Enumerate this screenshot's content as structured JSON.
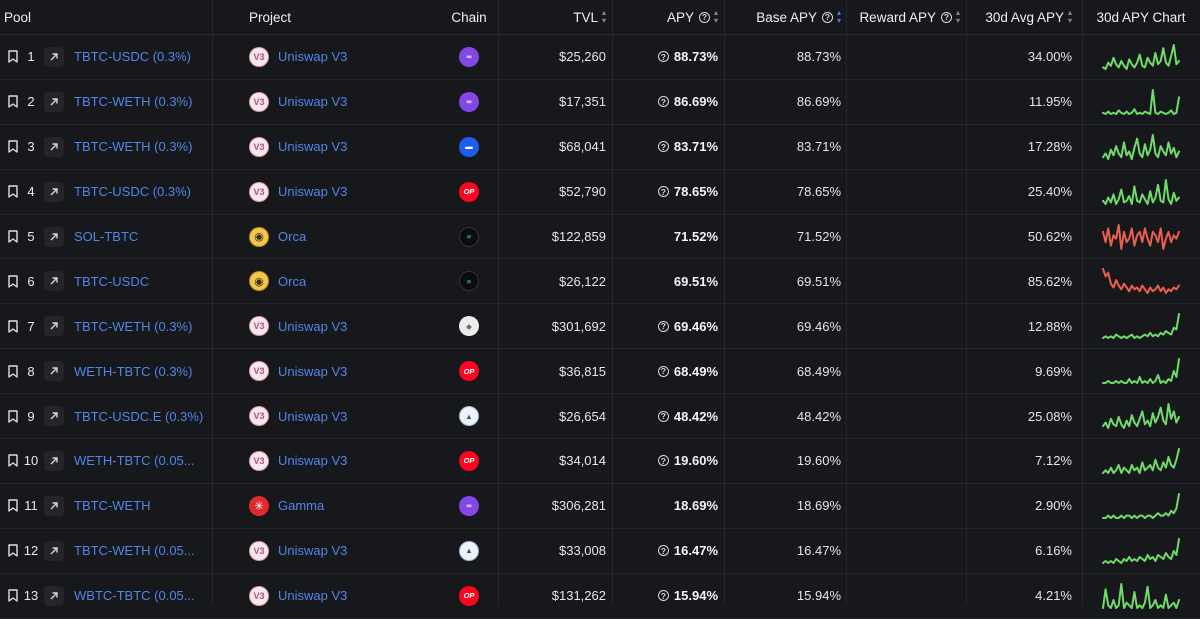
{
  "header": {
    "pool": "Pool",
    "project": "Project",
    "chain": "Chain",
    "tvl": "TVL",
    "apy": "APY",
    "base_apy": "Base APY",
    "reward_apy": "Reward APY",
    "avg_apy": "30d Avg APY",
    "chart": "30d APY Chart"
  },
  "colors": {
    "link": "#4f86e8",
    "spark_up": "#6fdc6a",
    "spark_down": "#ea5f4d"
  },
  "rows": [
    {
      "rank": "1",
      "pool": "TBTC-USDC (0.3%)",
      "project": "Uniswap V3",
      "project_icon": "uniswap-v3-icon",
      "chain": "polygon-icon",
      "tvl": "$25,260",
      "apy": "88.73%",
      "apy_help": true,
      "base": "88.73%",
      "reward": "",
      "avg": "34.00%",
      "trend": "green",
      "spark": [
        6,
        5,
        9,
        7,
        12,
        8,
        6,
        10,
        7,
        5,
        11,
        8,
        6,
        9,
        14,
        7,
        6,
        12,
        9,
        7,
        15,
        8,
        10,
        18,
        9,
        7,
        13,
        20,
        8,
        10
      ]
    },
    {
      "rank": "2",
      "pool": "TBTC-WETH (0.3%)",
      "project": "Uniswap V3",
      "project_icon": "uniswap-v3-icon",
      "chain": "polygon-icon",
      "tvl": "$17,351",
      "apy": "86.69%",
      "apy_help": true,
      "base": "86.69%",
      "reward": "",
      "avg": "11.95%",
      "trend": "green",
      "spark": [
        3,
        2,
        4,
        2,
        3,
        2,
        5,
        3,
        2,
        4,
        2,
        3,
        6,
        2,
        3,
        2,
        4,
        3,
        2,
        22,
        3,
        2,
        4,
        3,
        2,
        3,
        5,
        2,
        3,
        16
      ]
    },
    {
      "rank": "3",
      "pool": "TBTC-WETH (0.3%)",
      "project": "Uniswap V3",
      "project_icon": "uniswap-v3-icon",
      "chain": "base-icon",
      "tvl": "$68,041",
      "apy": "83.71%",
      "apy_help": true,
      "base": "83.71%",
      "reward": "",
      "avg": "17.28%",
      "trend": "green",
      "spark": [
        4,
        6,
        3,
        8,
        5,
        10,
        6,
        4,
        12,
        5,
        7,
        3,
        9,
        14,
        6,
        4,
        11,
        5,
        8,
        16,
        6,
        4,
        10,
        7,
        5,
        12,
        6,
        9,
        4,
        7
      ]
    },
    {
      "rank": "4",
      "pool": "TBTC-USDC (0.3%)",
      "project": "Uniswap V3",
      "project_icon": "uniswap-v3-icon",
      "chain": "optimism-icon",
      "tvl": "$52,790",
      "apy": "78.65%",
      "apy_help": true,
      "base": "78.65%",
      "reward": "",
      "avg": "25.40%",
      "trend": "green",
      "spark": [
        5,
        3,
        7,
        4,
        9,
        3,
        6,
        12,
        4,
        5,
        8,
        3,
        14,
        5,
        4,
        9,
        6,
        3,
        11,
        4,
        7,
        15,
        5,
        4,
        18,
        6,
        3,
        10,
        5,
        7
      ]
    },
    {
      "rank": "5",
      "pool": "SOL-TBTC",
      "project": "Orca",
      "project_icon": "orca-icon",
      "chain": "solana-icon",
      "tvl": "$122,859",
      "apy": "71.52%",
      "apy_help": false,
      "base": "71.52%",
      "reward": "",
      "avg": "50.62%",
      "trend": "red",
      "spark": [
        12,
        9,
        13,
        8,
        11,
        10,
        14,
        7,
        12,
        9,
        10,
        13,
        8,
        11,
        12,
        9,
        13,
        10,
        8,
        12,
        11,
        9,
        13,
        7,
        10,
        12,
        9,
        11,
        10,
        12
      ]
    },
    {
      "rank": "6",
      "pool": "TBTC-USDC",
      "project": "Orca",
      "project_icon": "orca-icon",
      "chain": "solana-icon",
      "tvl": "$26,122",
      "apy": "69.51%",
      "apy_help": false,
      "base": "69.51%",
      "reward": "",
      "avg": "85.62%",
      "trend": "red",
      "spark": [
        18,
        14,
        16,
        10,
        8,
        12,
        9,
        7,
        10,
        8,
        6,
        9,
        7,
        8,
        6,
        9,
        7,
        5,
        8,
        6,
        7,
        9,
        6,
        8,
        5,
        7,
        6,
        8,
        7,
        9
      ]
    },
    {
      "rank": "7",
      "pool": "TBTC-WETH (0.3%)",
      "project": "Uniswap V3",
      "project_icon": "uniswap-v3-icon",
      "chain": "ethereum-icon",
      "tvl": "$301,692",
      "apy": "69.46%",
      "apy_help": true,
      "base": "69.46%",
      "reward": "",
      "avg": "12.88%",
      "trend": "green",
      "spark": [
        2,
        3,
        2,
        3,
        2,
        4,
        3,
        2,
        3,
        2,
        3,
        4,
        2,
        3,
        2,
        3,
        4,
        3,
        5,
        3,
        4,
        3,
        5,
        4,
        6,
        5,
        4,
        8,
        7,
        16
      ]
    },
    {
      "rank": "8",
      "pool": "WETH-TBTC (0.3%)",
      "project": "Uniswap V3",
      "project_icon": "uniswap-v3-icon",
      "chain": "optimism-icon",
      "tvl": "$36,815",
      "apy": "68.49%",
      "apy_help": true,
      "base": "68.49%",
      "reward": "",
      "avg": "9.69%",
      "trend": "green",
      "spark": [
        2,
        2,
        3,
        2,
        2,
        3,
        2,
        3,
        2,
        2,
        4,
        2,
        3,
        2,
        5,
        2,
        3,
        2,
        4,
        2,
        3,
        6,
        2,
        3,
        2,
        4,
        3,
        8,
        5,
        14
      ]
    },
    {
      "rank": "9",
      "pool": "TBTC-USDC.E (0.3%)",
      "project": "Uniswap V3",
      "project_icon": "uniswap-v3-icon",
      "chain": "arbitrum-icon",
      "tvl": "$26,654",
      "apy": "48.42%",
      "apy_help": true,
      "base": "48.42%",
      "reward": "",
      "avg": "25.08%",
      "trend": "green",
      "spark": [
        4,
        6,
        3,
        8,
        5,
        4,
        9,
        5,
        3,
        7,
        4,
        10,
        6,
        4,
        8,
        12,
        5,
        7,
        4,
        11,
        6,
        9,
        14,
        7,
        5,
        16,
        8,
        12,
        6,
        9
      ]
    },
    {
      "rank": "10",
      "pool": "WETH-TBTC (0.05...",
      "project": "Uniswap V3",
      "project_icon": "uniswap-v3-icon",
      "chain": "optimism-icon",
      "tvl": "$34,014",
      "apy": "19.60%",
      "apy_help": true,
      "base": "19.60%",
      "reward": "",
      "avg": "7.12%",
      "trend": "green",
      "spark": [
        3,
        4,
        3,
        5,
        3,
        4,
        6,
        3,
        5,
        4,
        3,
        6,
        4,
        5,
        3,
        7,
        4,
        5,
        6,
        4,
        8,
        5,
        4,
        7,
        5,
        9,
        6,
        5,
        8,
        12
      ]
    },
    {
      "rank": "11",
      "pool": "TBTC-WETH",
      "project": "Gamma",
      "project_icon": "gamma-icon",
      "chain": "polygon-icon",
      "tvl": "$306,281",
      "apy": "18.69%",
      "apy_help": false,
      "base": "18.69%",
      "reward": "",
      "avg": "2.90%",
      "trend": "green",
      "spark": [
        2,
        2,
        3,
        2,
        3,
        2,
        2,
        3,
        2,
        3,
        3,
        2,
        3,
        2,
        3,
        3,
        2,
        3,
        3,
        2,
        3,
        4,
        3,
        3,
        4,
        3,
        5,
        4,
        6,
        12
      ]
    },
    {
      "rank": "12",
      "pool": "TBTC-WETH (0.05...",
      "project": "Uniswap V3",
      "project_icon": "uniswap-v3-icon",
      "chain": "arbitrum-icon",
      "tvl": "$33,008",
      "apy": "16.47%",
      "apy_help": true,
      "base": "16.47%",
      "reward": "",
      "avg": "6.16%",
      "trend": "green",
      "spark": [
        2,
        3,
        2,
        3,
        2,
        4,
        3,
        2,
        4,
        3,
        5,
        3,
        4,
        3,
        5,
        4,
        3,
        6,
        4,
        5,
        3,
        6,
        5,
        4,
        7,
        5,
        4,
        8,
        6,
        14
      ]
    },
    {
      "rank": "13",
      "pool": "WBTC-TBTC (0.05...",
      "project": "Uniswap V3",
      "project_icon": "uniswap-v3-icon",
      "chain": "optimism-icon",
      "tvl": "$131,262",
      "apy": "15.94%",
      "apy_help": true,
      "base": "15.94%",
      "reward": "",
      "avg": "4.21%",
      "trend": "green",
      "spark": [
        3,
        10,
        4,
        3,
        6,
        3,
        4,
        12,
        3,
        5,
        4,
        3,
        9,
        3,
        4,
        3,
        5,
        11,
        3,
        4,
        6,
        3,
        4,
        3,
        8,
        3,
        4,
        5,
        3,
        6
      ]
    }
  ]
}
